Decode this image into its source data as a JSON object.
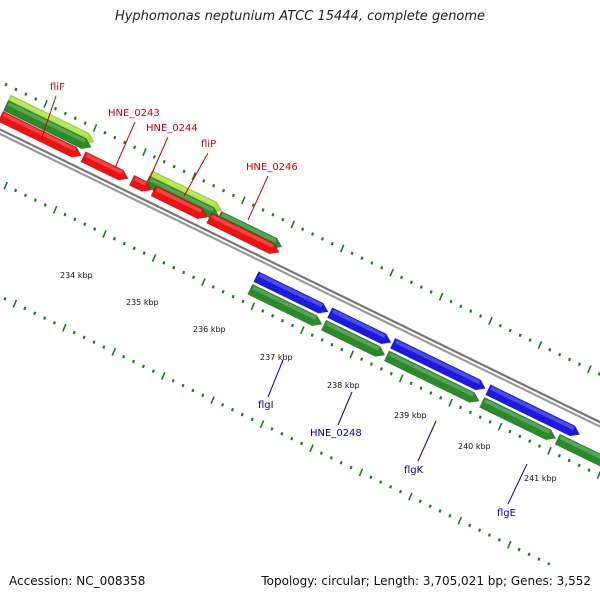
{
  "title": "Hyphomonas neptunium ATCC 15444, complete genome",
  "footer": {
    "accession": "Accession: NC_008358",
    "topology": "Topology: circular; Length: 3,705,021 bp; Genes: 3,552"
  },
  "colors": {
    "backbone": "#8a8a8a",
    "red": "#ee1111",
    "dark_green": "#2a8a2a",
    "light_green": "#a6e030",
    "blue": "#1a1ae0",
    "tick_green": "#1f7a1f",
    "label_red": "#cc0000",
    "label_blue": "#0000aa"
  },
  "kbp_labels": [
    "234 kbp",
    "235 kbp",
    "236 kbp",
    "237 kbp",
    "238 kbp",
    "239 kbp",
    "240 kbp",
    "241 kbp"
  ],
  "genes_top": [
    "fliF",
    "HNE_0243",
    "HNE_0244",
    "fliP",
    "HNE_0246"
  ],
  "genes_bottom": [
    "flgI",
    "HNE_0248",
    "flgK",
    "flgE"
  ]
}
